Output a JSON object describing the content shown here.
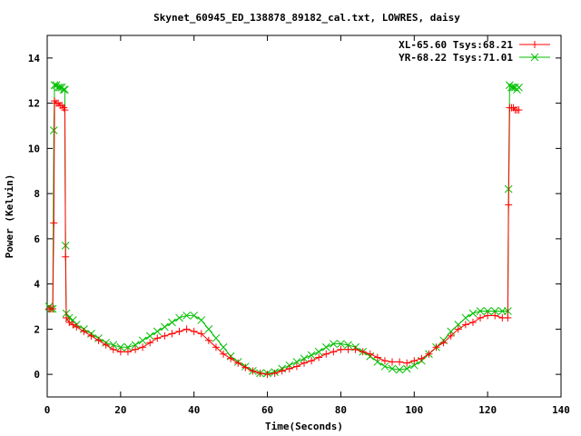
{
  "chart_data": {
    "type": "line",
    "title": "Skynet_60945_ED_138878_89182_cal.txt, LOWRES, daisy",
    "xlabel": "Time(Seconds)",
    "ylabel": "Power (Kelvin)",
    "xlim": [
      0,
      140
    ],
    "ylim": [
      -1,
      15
    ],
    "xticks": [
      0,
      20,
      40,
      60,
      80,
      100,
      120,
      140
    ],
    "yticks": [
      0,
      2,
      4,
      6,
      8,
      10,
      12,
      14
    ],
    "grid": false,
    "legend_position": "top-right",
    "series": [
      {
        "name": "XL-65.60 Tsys:68.21",
        "color": "#ff0000",
        "marker": "plus",
        "points": [
          [
            0.5,
            2.9
          ],
          [
            1.0,
            2.9
          ],
          [
            1.5,
            2.9
          ],
          [
            1.8,
            6.7
          ],
          [
            2.0,
            12.1
          ],
          [
            2.5,
            12.0
          ],
          [
            3.0,
            12.0
          ],
          [
            3.5,
            11.9
          ],
          [
            4.0,
            11.9
          ],
          [
            4.5,
            11.8
          ],
          [
            4.8,
            11.7
          ],
          [
            5.0,
            5.2
          ],
          [
            5.2,
            2.5
          ],
          [
            6,
            2.3
          ],
          [
            7,
            2.2
          ],
          [
            8,
            2.1
          ],
          [
            10,
            1.9
          ],
          [
            12,
            1.7
          ],
          [
            14,
            1.5
          ],
          [
            16,
            1.3
          ],
          [
            18,
            1.1
          ],
          [
            20,
            1.0
          ],
          [
            22,
            1.0
          ],
          [
            24,
            1.1
          ],
          [
            26,
            1.2
          ],
          [
            28,
            1.4
          ],
          [
            30,
            1.6
          ],
          [
            32,
            1.7
          ],
          [
            34,
            1.8
          ],
          [
            36,
            1.9
          ],
          [
            38,
            2.0
          ],
          [
            40,
            1.9
          ],
          [
            42,
            1.8
          ],
          [
            44,
            1.5
          ],
          [
            46,
            1.2
          ],
          [
            48,
            0.9
          ],
          [
            50,
            0.7
          ],
          [
            52,
            0.5
          ],
          [
            54,
            0.3
          ],
          [
            56,
            0.15
          ],
          [
            58,
            0.05
          ],
          [
            60,
            0.0
          ],
          [
            62,
            0.05
          ],
          [
            64,
            0.15
          ],
          [
            66,
            0.25
          ],
          [
            68,
            0.35
          ],
          [
            70,
            0.5
          ],
          [
            72,
            0.6
          ],
          [
            74,
            0.75
          ],
          [
            76,
            0.9
          ],
          [
            78,
            1.0
          ],
          [
            80,
            1.1
          ],
          [
            82,
            1.1
          ],
          [
            84,
            1.1
          ],
          [
            86,
            1.0
          ],
          [
            88,
            0.9
          ],
          [
            90,
            0.75
          ],
          [
            92,
            0.6
          ],
          [
            94,
            0.55
          ],
          [
            96,
            0.55
          ],
          [
            98,
            0.5
          ],
          [
            100,
            0.6
          ],
          [
            102,
            0.7
          ],
          [
            104,
            0.9
          ],
          [
            106,
            1.2
          ],
          [
            108,
            1.4
          ],
          [
            110,
            1.7
          ],
          [
            112,
            2.0
          ],
          [
            114,
            2.2
          ],
          [
            116,
            2.3
          ],
          [
            118,
            2.5
          ],
          [
            120,
            2.6
          ],
          [
            122,
            2.6
          ],
          [
            124,
            2.5
          ],
          [
            125.5,
            2.5
          ],
          [
            125.7,
            7.5
          ],
          [
            126,
            11.8
          ],
          [
            126.5,
            11.8
          ],
          [
            127,
            11.8
          ],
          [
            127.5,
            11.7
          ],
          [
            128,
            11.7
          ],
          [
            128.5,
            11.7
          ]
        ]
      },
      {
        "name": "YR-68.22 Tsys:71.01",
        "color": "#00c000",
        "marker": "cross",
        "points": [
          [
            0.5,
            3.0
          ],
          [
            1.0,
            2.9
          ],
          [
            1.5,
            2.9
          ],
          [
            1.8,
            10.8
          ],
          [
            2.0,
            12.8
          ],
          [
            2.5,
            12.8
          ],
          [
            3.0,
            12.7
          ],
          [
            3.5,
            12.7
          ],
          [
            4.0,
            12.7
          ],
          [
            4.5,
            12.6
          ],
          [
            4.8,
            12.6
          ],
          [
            5.0,
            5.7
          ],
          [
            5.2,
            2.7
          ],
          [
            6,
            2.5
          ],
          [
            7,
            2.4
          ],
          [
            8,
            2.2
          ],
          [
            10,
            2.0
          ],
          [
            12,
            1.8
          ],
          [
            14,
            1.6
          ],
          [
            16,
            1.4
          ],
          [
            18,
            1.3
          ],
          [
            20,
            1.2
          ],
          [
            22,
            1.2
          ],
          [
            24,
            1.3
          ],
          [
            26,
            1.5
          ],
          [
            28,
            1.7
          ],
          [
            30,
            1.9
          ],
          [
            32,
            2.1
          ],
          [
            34,
            2.3
          ],
          [
            36,
            2.5
          ],
          [
            38,
            2.6
          ],
          [
            40,
            2.6
          ],
          [
            42,
            2.4
          ],
          [
            44,
            2.0
          ],
          [
            46,
            1.6
          ],
          [
            48,
            1.2
          ],
          [
            50,
            0.8
          ],
          [
            52,
            0.55
          ],
          [
            54,
            0.35
          ],
          [
            56,
            0.15
          ],
          [
            58,
            0.05
          ],
          [
            60,
            0.05
          ],
          [
            62,
            0.1
          ],
          [
            64,
            0.25
          ],
          [
            66,
            0.4
          ],
          [
            68,
            0.55
          ],
          [
            70,
            0.7
          ],
          [
            72,
            0.85
          ],
          [
            74,
            1.0
          ],
          [
            76,
            1.2
          ],
          [
            78,
            1.35
          ],
          [
            80,
            1.35
          ],
          [
            82,
            1.3
          ],
          [
            84,
            1.2
          ],
          [
            86,
            1.0
          ],
          [
            88,
            0.8
          ],
          [
            90,
            0.55
          ],
          [
            92,
            0.35
          ],
          [
            94,
            0.25
          ],
          [
            96,
            0.2
          ],
          [
            98,
            0.25
          ],
          [
            100,
            0.4
          ],
          [
            102,
            0.6
          ],
          [
            104,
            0.9
          ],
          [
            106,
            1.2
          ],
          [
            108,
            1.5
          ],
          [
            110,
            1.9
          ],
          [
            112,
            2.2
          ],
          [
            114,
            2.5
          ],
          [
            116,
            2.7
          ],
          [
            118,
            2.8
          ],
          [
            120,
            2.8
          ],
          [
            122,
            2.8
          ],
          [
            124,
            2.8
          ],
          [
            125.5,
            2.8
          ],
          [
            125.7,
            8.2
          ],
          [
            126,
            12.8
          ],
          [
            126.5,
            12.7
          ],
          [
            127,
            12.7
          ],
          [
            127.5,
            12.7
          ],
          [
            128,
            12.6
          ],
          [
            128.5,
            12.7
          ]
        ]
      }
    ]
  }
}
